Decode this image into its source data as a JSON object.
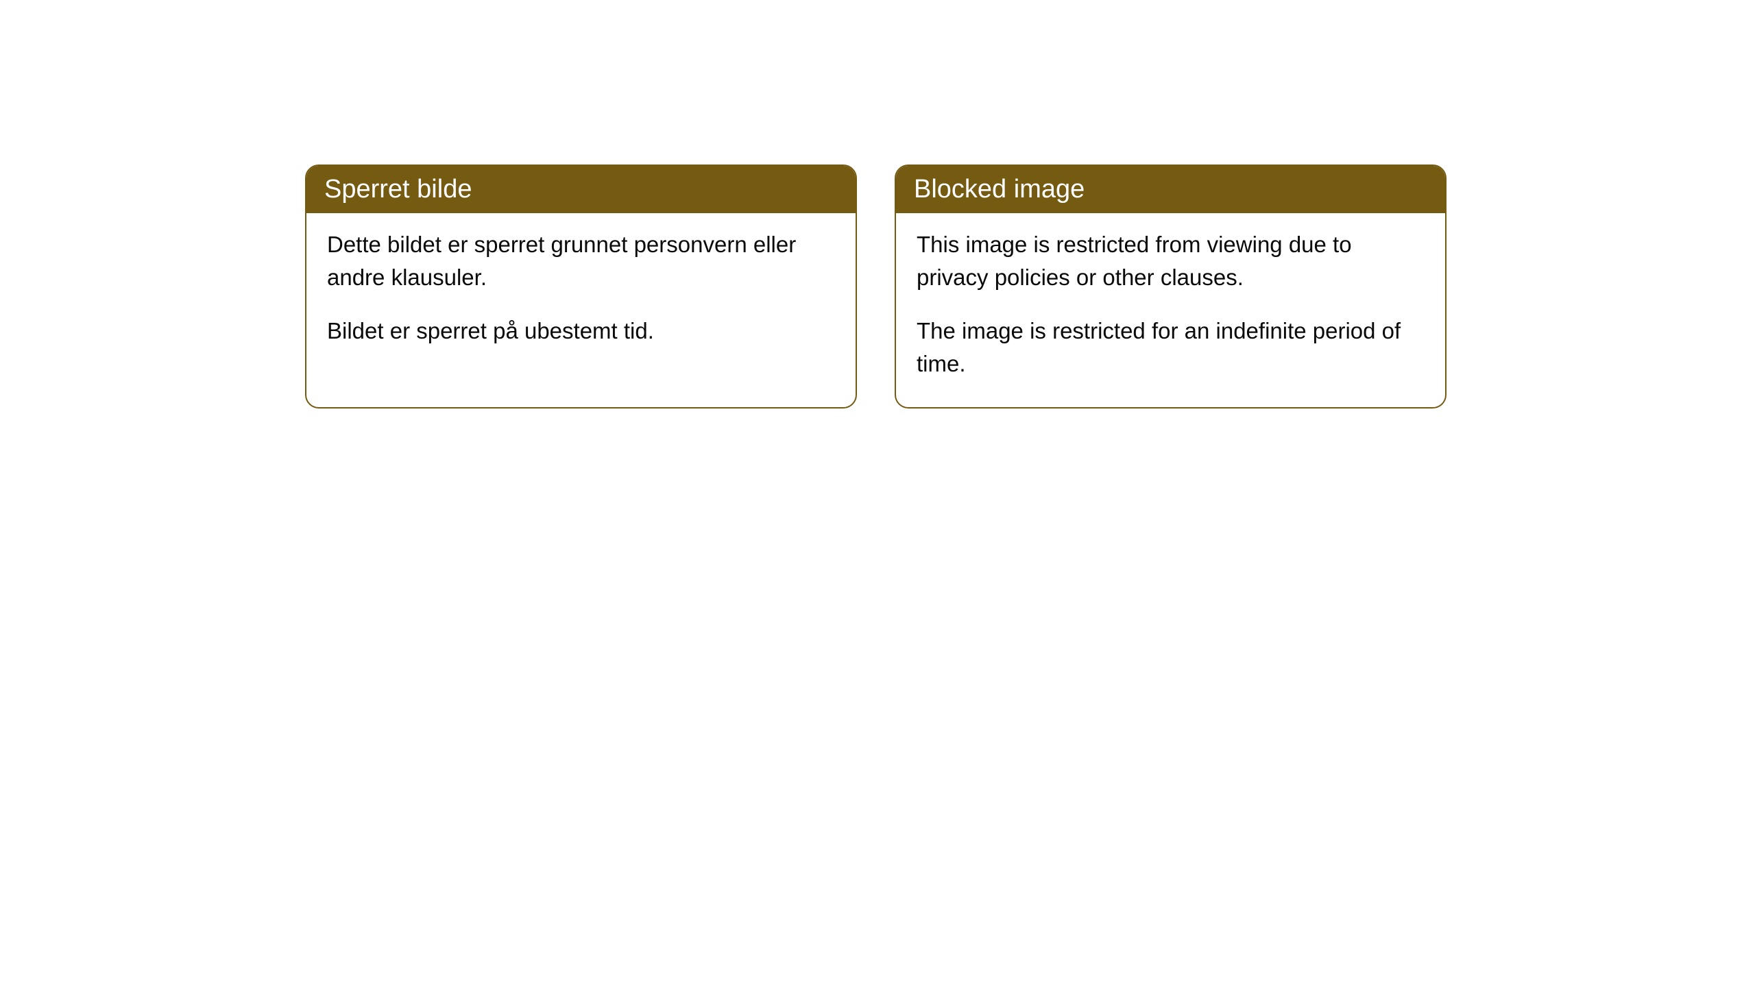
{
  "cards": {
    "norwegian": {
      "title": "Sperret bilde",
      "paragraph1": "Dette bildet er sperret grunnet personvern eller andre klausuler.",
      "paragraph2": "Bildet er sperret på ubestemt tid."
    },
    "english": {
      "title": "Blocked image",
      "paragraph1": "This image is restricted from viewing due to privacy policies or other clauses.",
      "paragraph2": "The image is restricted for an indefinite period of time."
    }
  },
  "styling": {
    "header_background": "#755a11",
    "header_text_color": "#ffffff",
    "border_color": "#755a11",
    "body_text_color": "#0a0a0a",
    "card_background": "#ffffff",
    "border_radius": 20,
    "header_fontsize": 38,
    "body_fontsize": 33
  }
}
